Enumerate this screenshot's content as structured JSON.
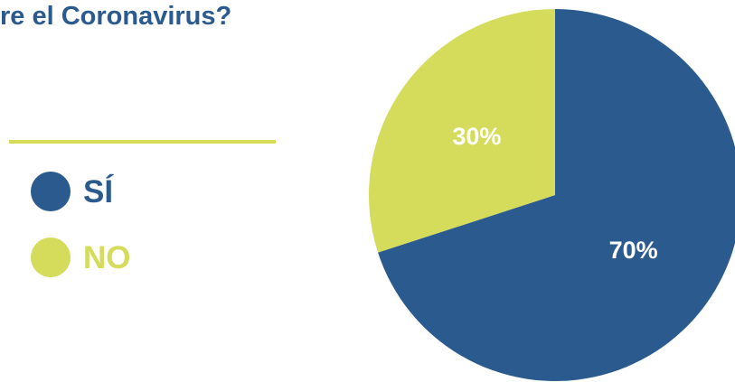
{
  "title": "re el Coronavirus?",
  "colors": {
    "title": "#2b5a8e",
    "rule": "#d5db5b",
    "si": "#2b5a8e",
    "no": "#d5db5b"
  },
  "legend": [
    {
      "label": "SÍ",
      "color": "#2b5a8e"
    },
    {
      "label": "NO",
      "color": "#d5db5b"
    }
  ],
  "chart_data": {
    "type": "pie",
    "categories": [
      "SÍ",
      "NO"
    ],
    "values": [
      70,
      30
    ],
    "labels": [
      "70%",
      "30%"
    ],
    "colors": [
      "#2b5a8e",
      "#d5db5b"
    ],
    "title": "re el Coronavirus?",
    "legend_position": "left"
  }
}
